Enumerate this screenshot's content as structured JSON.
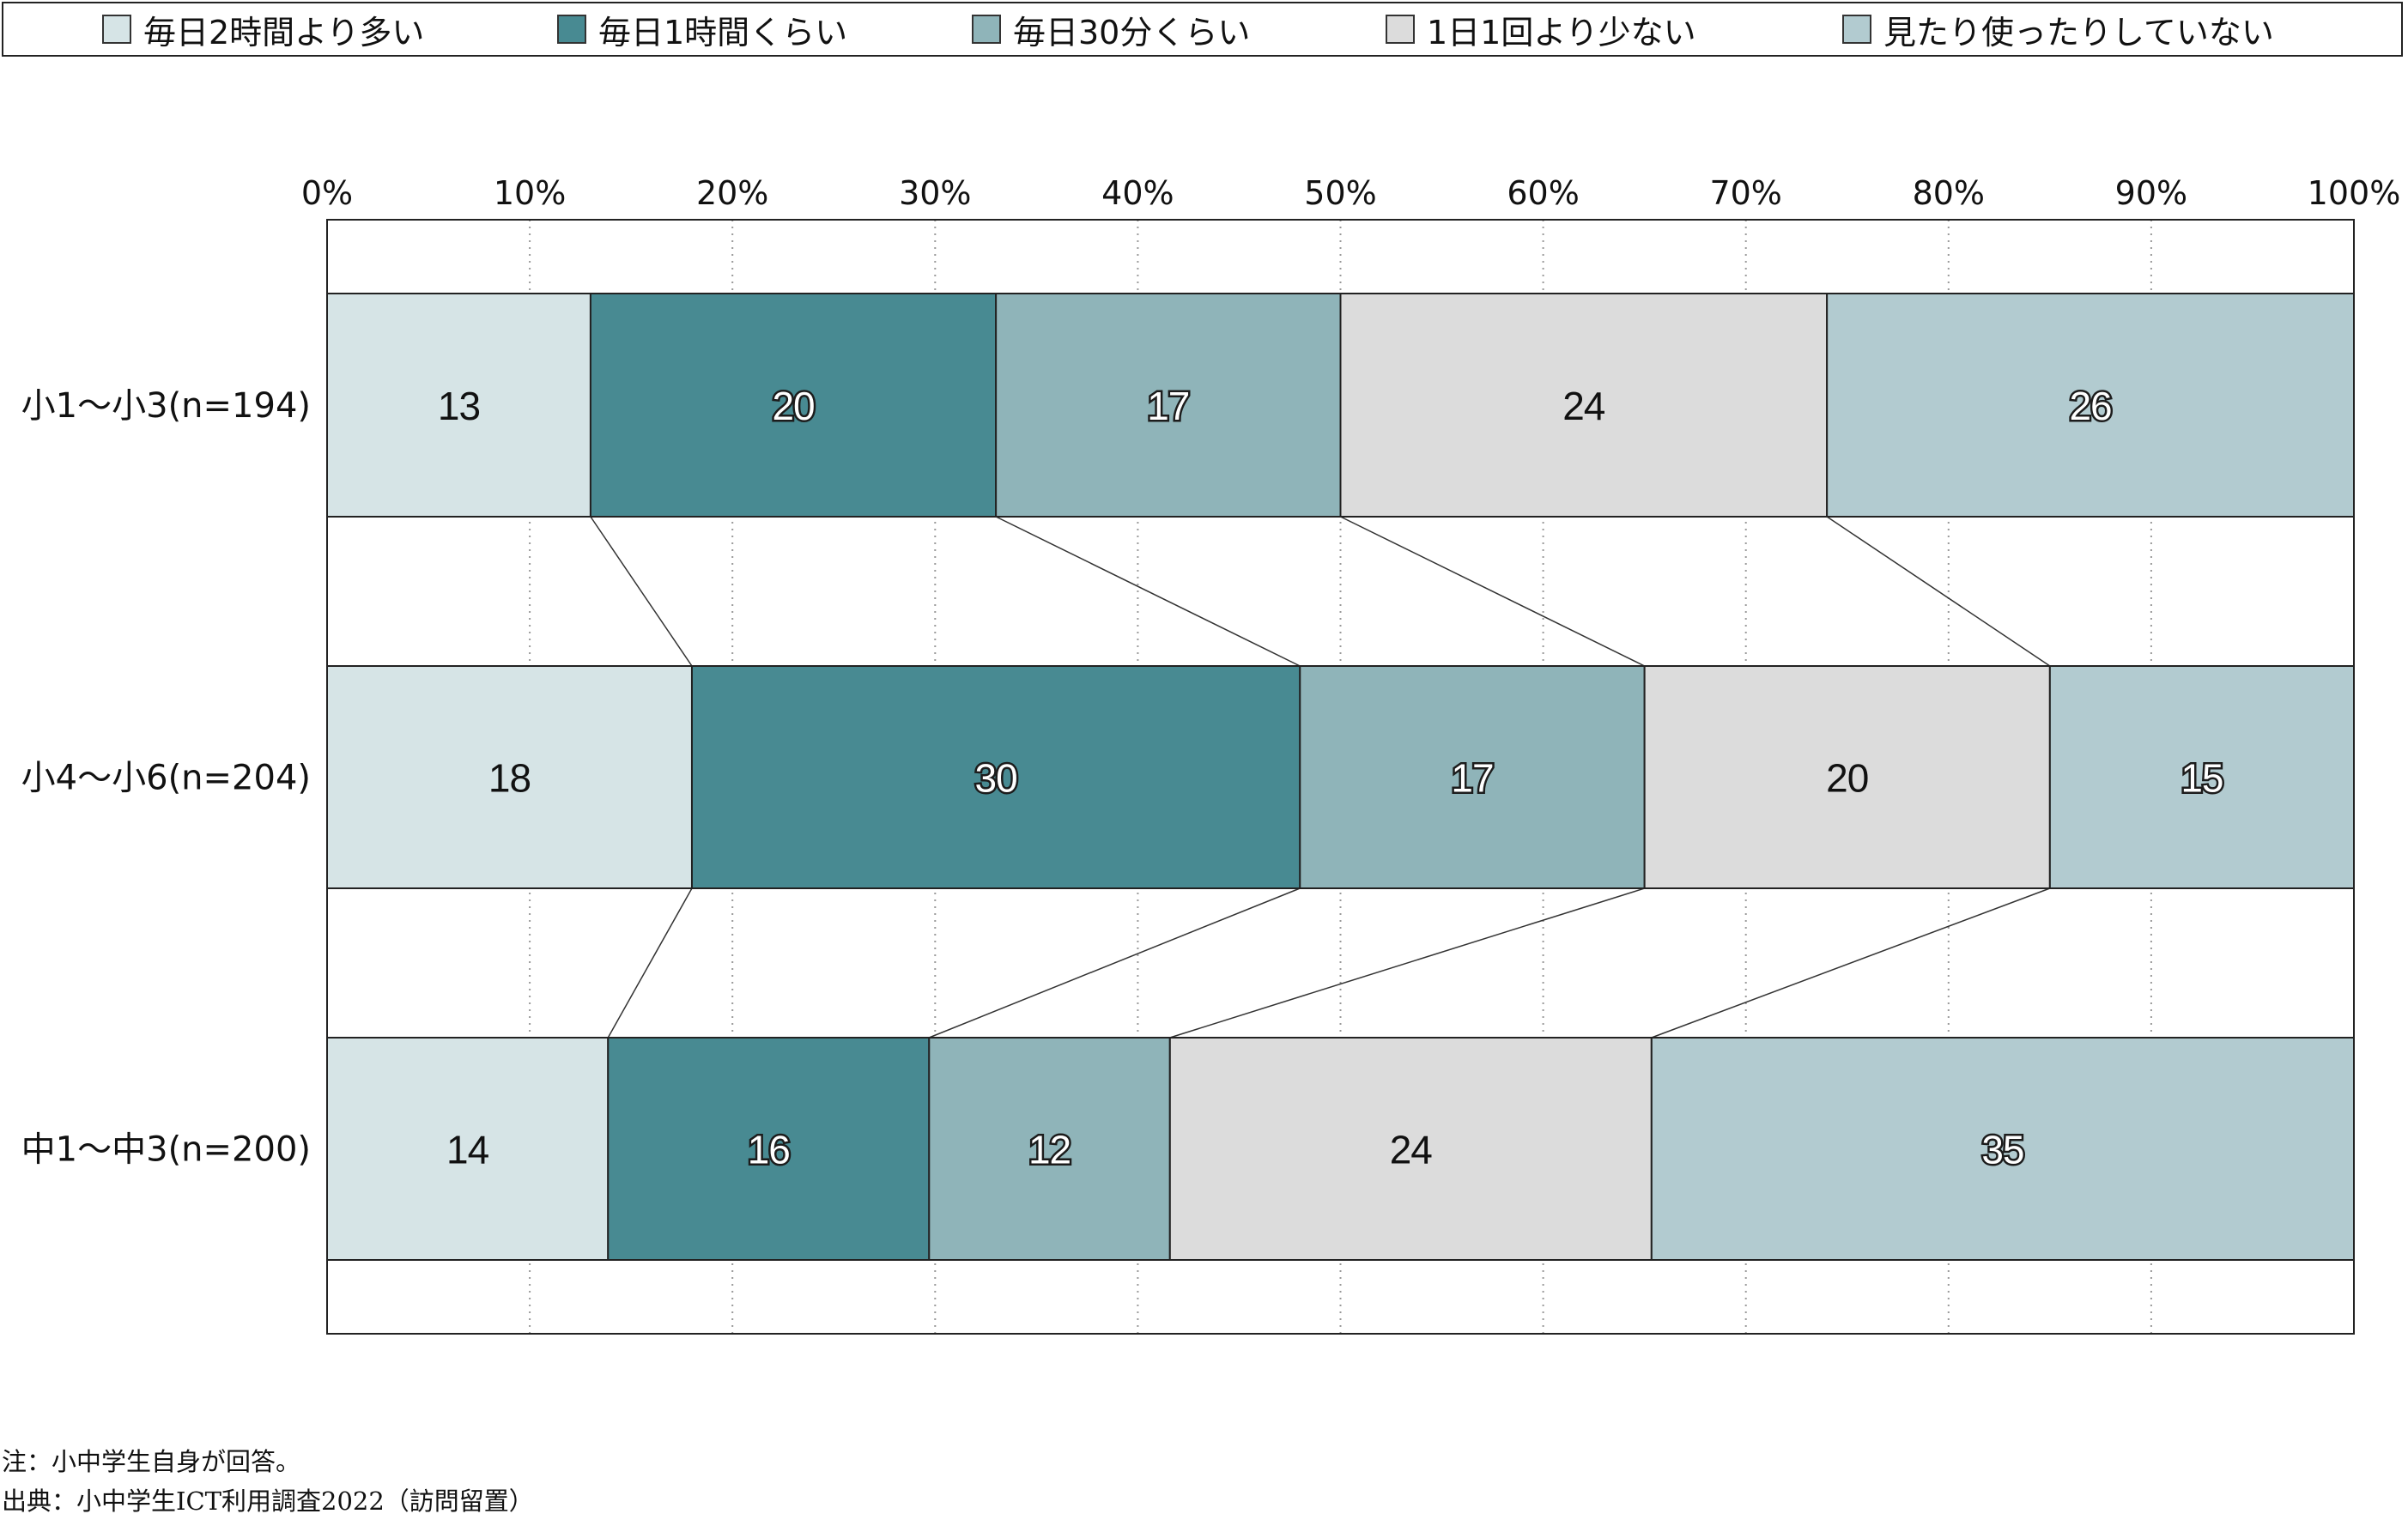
{
  "chart_data": {
    "type": "bar",
    "stacked": true,
    "orientation": "horizontal",
    "percent_scale": true,
    "xlim": [
      0,
      100
    ],
    "x_ticks": [
      "0%",
      "10%",
      "20%",
      "30%",
      "40%",
      "50%",
      "60%",
      "70%",
      "80%",
      "90%",
      "100%"
    ],
    "grid": true,
    "legend_position": "top",
    "categories": [
      "小1～小3(n=194)",
      "小4～小6(n=204)",
      "中1～中3(n=200)"
    ],
    "series": [
      {
        "name": "毎日2時間より多い",
        "color": "#d6e4e6",
        "text_color": "#111111",
        "values": [
          13,
          18,
          14
        ]
      },
      {
        "name": "毎日1時間くらい",
        "color": "#488a92",
        "text_color": "#ffffff",
        "values": [
          20,
          30,
          16
        ]
      },
      {
        "name": "毎日30分くらい",
        "color": "#8fb4b9",
        "text_color": "#ffffff",
        "values": [
          17,
          17,
          12
        ]
      },
      {
        "name": "1日1回より少ない",
        "color": "#dcdcdc",
        "text_color": "#111111",
        "values": [
          24,
          20,
          24
        ]
      },
      {
        "name": "見たり使ったりしていない",
        "color": "#b2cbd0",
        "text_color": "#ffffff",
        "values": [
          26,
          15,
          35
        ]
      }
    ]
  },
  "notes": {
    "note": "注：小中学生自身が回答。",
    "source": "出典：小中学生ICT利用調査2022（訪問留置）"
  }
}
